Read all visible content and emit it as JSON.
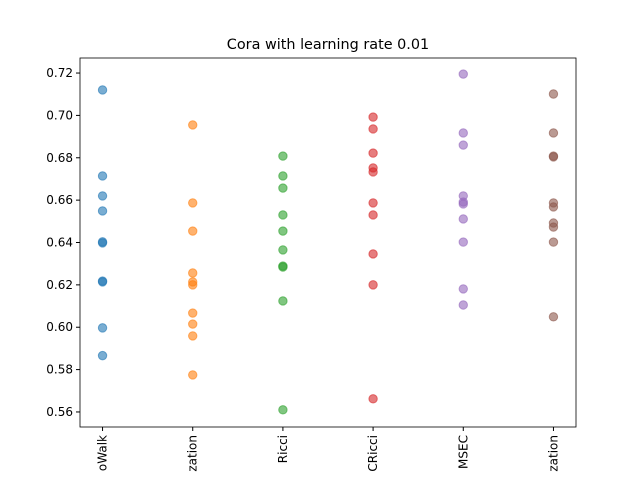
{
  "chart_data": {
    "type": "strip",
    "title": "Cora with learning rate 0.01",
    "categories": [
      "oWalk",
      "zation",
      "Ricci",
      "CRicci",
      "MSEC",
      "zation"
    ],
    "colors": [
      "#1f77b4",
      "#ff7f0e",
      "#2ca02c",
      "#d62728",
      "#9467bd",
      "#8c564b"
    ],
    "values": [
      [
        0.712,
        0.6714,
        0.662,
        0.6549,
        0.6403,
        0.6398,
        0.6218,
        0.6214,
        0.5997,
        0.5866
      ],
      [
        0.6955,
        0.6587,
        0.6454,
        0.6256,
        0.6214,
        0.62,
        0.6067,
        0.6015,
        0.5959,
        0.5775
      ],
      [
        0.6808,
        0.6714,
        0.6657,
        0.653,
        0.6454,
        0.6365,
        0.6289,
        0.6284,
        0.6124,
        0.561
      ],
      [
        0.6992,
        0.6936,
        0.6822,
        0.6752,
        0.6733,
        0.6587,
        0.653,
        0.6346,
        0.62,
        0.5662
      ],
      [
        0.7195,
        0.6917,
        0.686,
        0.662,
        0.6591,
        0.6582,
        0.6511,
        0.6402,
        0.6181,
        0.6105
      ],
      [
        0.7101,
        0.6917,
        0.6808,
        0.6804,
        0.6587,
        0.6568,
        0.6492,
        0.6473,
        0.6402,
        0.6049
      ]
    ],
    "ylim": [
      0.5529,
      0.7271
    ],
    "yticks": [
      0.56,
      0.58,
      {
        "value": 0.6,
        "label": "0.60"
      },
      0.62,
      0.64,
      0.66,
      0.68,
      {
        "value": 0.7,
        "label": "0.70"
      },
      0.72
    ]
  }
}
